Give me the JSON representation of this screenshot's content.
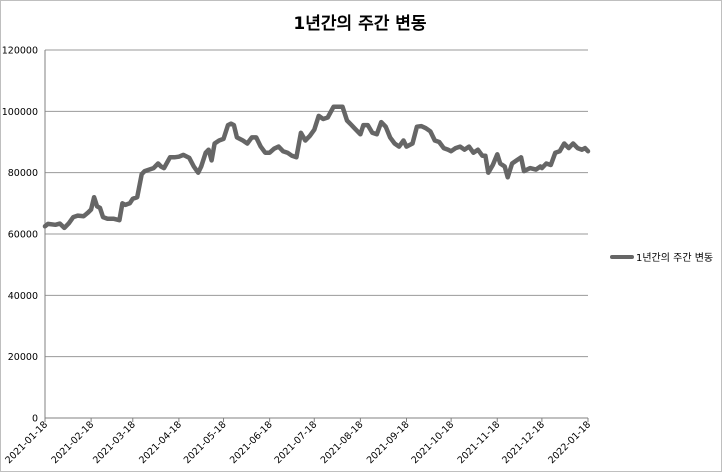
{
  "chart_data": {
    "type": "line",
    "title": "1년간의 주간 변동",
    "xlabel": "",
    "ylabel": "",
    "ylim": [
      0,
      120000
    ],
    "y_ticks": [
      0,
      20000,
      40000,
      60000,
      80000,
      100000,
      120000
    ],
    "x_tick_labels": [
      "2021-01-18",
      "2021-02-18",
      "2021-03-18",
      "2021-04-18",
      "2021-05-18",
      "2021-06-18",
      "2021-07-18",
      "2021-08-18",
      "2021-09-18",
      "2021-10-18",
      "2021-11-18",
      "2021-12-18",
      "2022-01-18"
    ],
    "x_range": [
      "2021-01-18",
      "2022-01-18"
    ],
    "grid": "horizontal",
    "legend_position": "right",
    "series": [
      {
        "name": "1년간의 주간 변동",
        "color": "#666666",
        "points": [
          [
            "2021-01-18",
            62500
          ],
          [
            "2021-01-20",
            63300
          ],
          [
            "2021-01-25",
            63000
          ],
          [
            "2021-01-28",
            63400
          ],
          [
            "2021-01-31",
            62000
          ],
          [
            "2021-02-03",
            63500
          ],
          [
            "2021-02-06",
            65500
          ],
          [
            "2021-02-09",
            66000
          ],
          [
            "2021-02-13",
            65800
          ],
          [
            "2021-02-16",
            67000
          ],
          [
            "2021-02-18",
            68000
          ],
          [
            "2021-02-20",
            72000
          ],
          [
            "2021-02-22",
            69000
          ],
          [
            "2021-02-24",
            68500
          ],
          [
            "2021-02-26",
            65500
          ],
          [
            "2021-03-01",
            65000
          ],
          [
            "2021-03-05",
            65000
          ],
          [
            "2021-03-09",
            64500
          ],
          [
            "2021-03-11",
            70000
          ],
          [
            "2021-03-13",
            69500
          ],
          [
            "2021-03-16",
            70000
          ],
          [
            "2021-03-18",
            71500
          ],
          [
            "2021-03-21",
            72000
          ],
          [
            "2021-03-24",
            79500
          ],
          [
            "2021-03-26",
            80500
          ],
          [
            "2021-03-29",
            81000
          ],
          [
            "2021-04-01",
            81500
          ],
          [
            "2021-04-04",
            83000
          ],
          [
            "2021-04-06",
            82000
          ],
          [
            "2021-04-08",
            81500
          ],
          [
            "2021-04-12",
            85000
          ],
          [
            "2021-04-15",
            85000
          ],
          [
            "2021-04-18",
            85200
          ],
          [
            "2021-04-21",
            85800
          ],
          [
            "2021-04-25",
            84800
          ],
          [
            "2021-04-28",
            82000
          ],
          [
            "2021-05-01",
            80000
          ],
          [
            "2021-05-03",
            82000
          ],
          [
            "2021-05-06",
            86500
          ],
          [
            "2021-05-08",
            87500
          ],
          [
            "2021-05-10",
            84000
          ],
          [
            "2021-05-12",
            89500
          ],
          [
            "2021-05-15",
            90500
          ],
          [
            "2021-05-18",
            91000
          ],
          [
            "2021-05-21",
            95500
          ],
          [
            "2021-05-23",
            96000
          ],
          [
            "2021-05-25",
            95500
          ],
          [
            "2021-05-27",
            91500
          ],
          [
            "2021-05-31",
            90500
          ],
          [
            "2021-06-03",
            89500
          ],
          [
            "2021-06-06",
            91500
          ],
          [
            "2021-06-09",
            91500
          ],
          [
            "2021-06-12",
            88500
          ],
          [
            "2021-06-15",
            86500
          ],
          [
            "2021-06-18",
            86500
          ],
          [
            "2021-06-21",
            87800
          ],
          [
            "2021-06-24",
            88500
          ],
          [
            "2021-06-27",
            87000
          ],
          [
            "2021-06-30",
            86500
          ],
          [
            "2021-07-03",
            85500
          ],
          [
            "2021-07-06",
            85000
          ],
          [
            "2021-07-09",
            93000
          ],
          [
            "2021-07-12",
            90500
          ],
          [
            "2021-07-15",
            92000
          ],
          [
            "2021-07-18",
            94000
          ],
          [
            "2021-07-21",
            98500
          ],
          [
            "2021-07-24",
            97500
          ],
          [
            "2021-07-27",
            98000
          ],
          [
            "2021-07-31",
            101500
          ],
          [
            "2021-08-03",
            101500
          ],
          [
            "2021-08-06",
            101500
          ],
          [
            "2021-08-09",
            97000
          ],
          [
            "2021-08-12",
            95500
          ],
          [
            "2021-08-15",
            94000
          ],
          [
            "2021-08-18",
            92500
          ],
          [
            "2021-08-20",
            95500
          ],
          [
            "2021-08-23",
            95500
          ],
          [
            "2021-08-26",
            93000
          ],
          [
            "2021-08-29",
            92500
          ],
          [
            "2021-09-01",
            96500
          ],
          [
            "2021-09-04",
            95000
          ],
          [
            "2021-09-07",
            91500
          ],
          [
            "2021-09-10",
            89500
          ],
          [
            "2021-09-13",
            88500
          ],
          [
            "2021-09-16",
            90500
          ],
          [
            "2021-09-18",
            88500
          ],
          [
            "2021-09-22",
            89500
          ],
          [
            "2021-09-25",
            95000
          ],
          [
            "2021-09-28",
            95200
          ],
          [
            "2021-10-01",
            94500
          ],
          [
            "2021-10-04",
            93500
          ],
          [
            "2021-10-07",
            90500
          ],
          [
            "2021-10-10",
            90000
          ],
          [
            "2021-10-13",
            88000
          ],
          [
            "2021-10-16",
            87500
          ],
          [
            "2021-10-18",
            87000
          ],
          [
            "2021-10-21",
            88000
          ],
          [
            "2021-10-24",
            88500
          ],
          [
            "2021-10-27",
            87500
          ],
          [
            "2021-10-30",
            88500
          ],
          [
            "2021-11-02",
            86500
          ],
          [
            "2021-11-05",
            87500
          ],
          [
            "2021-11-08",
            85500
          ],
          [
            "2021-11-10",
            85500
          ],
          [
            "2021-11-12",
            80000
          ],
          [
            "2021-11-15",
            82500
          ],
          [
            "2021-11-18",
            86000
          ],
          [
            "2021-11-20",
            83000
          ],
          [
            "2021-11-23",
            82000
          ],
          [
            "2021-11-25",
            78500
          ],
          [
            "2021-11-28",
            83000
          ],
          [
            "2021-12-01",
            84000
          ],
          [
            "2021-12-04",
            85000
          ],
          [
            "2021-12-06",
            80500
          ],
          [
            "2021-12-10",
            81500
          ],
          [
            "2021-12-14",
            81000
          ],
          [
            "2021-12-17",
            82000
          ],
          [
            "2021-12-18",
            81500
          ],
          [
            "2021-12-21",
            83000
          ],
          [
            "2021-12-24",
            82500
          ],
          [
            "2021-12-27",
            86500
          ],
          [
            "2021-12-30",
            87000
          ],
          [
            "2022-01-02",
            89500
          ],
          [
            "2022-01-05",
            88000
          ],
          [
            "2022-01-08",
            89500
          ],
          [
            "2022-01-11",
            88000
          ],
          [
            "2022-01-14",
            87500
          ],
          [
            "2022-01-16",
            88000
          ],
          [
            "2022-01-18",
            87000
          ]
        ]
      }
    ]
  }
}
